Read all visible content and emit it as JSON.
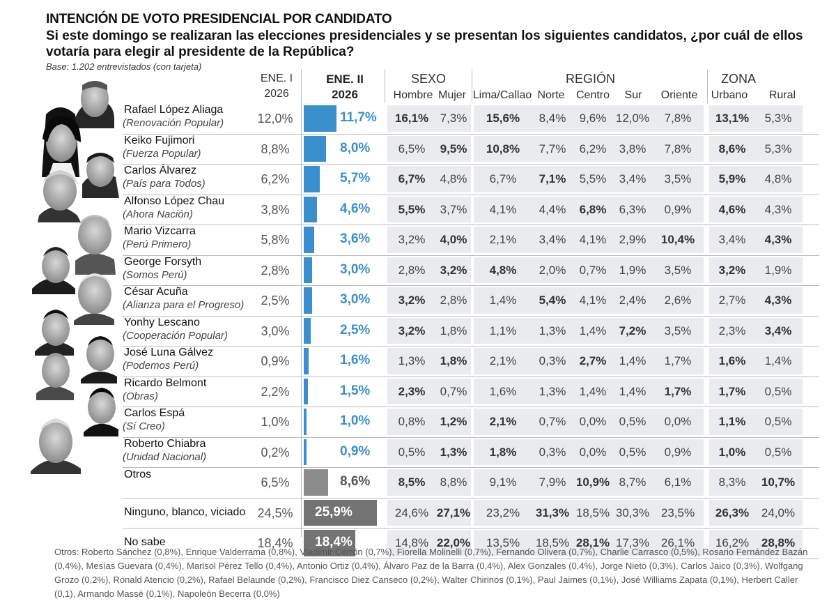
{
  "title": "INTENCIÓN DE VOTO PRESIDENCIAL POR CANDIDATO",
  "subtitle": "Si este domingo se realizaran las elecciones presidenciales y se presentan los siguientes candidatos, ¿por cuál de ellos votaría para elegir al presidente de la República?",
  "base": "Base: 1.202 entrevistados (con tarjeta)",
  "headers": {
    "ene1_line1": "ENE. I",
    "ene1_line2": "2026",
    "ene2_line1": "ENE. II",
    "ene2_line2": "2026",
    "sexo": "SEXO",
    "region": "REGIÓN",
    "zona": "ZONA",
    "hombre": "Hombre",
    "mujer": "Mujer",
    "lima": "Lima/Callao",
    "norte": "Norte",
    "centro": "Centro",
    "sur": "Sur",
    "oriente": "Oriente",
    "urbano": "Urbano",
    "rural": "Rural"
  },
  "colors": {
    "candidate_bar": "#3a8fcf",
    "otros_bar": "#8c8c8c",
    "ninguno_bar": "#737373",
    "cell_bg": "#e9ebee"
  },
  "chart_data": {
    "type": "table",
    "columns": [
      "ENE. I 2026",
      "ENE. II 2026",
      "Hombre",
      "Mujer",
      "Lima/Callao",
      "Norte",
      "Centro",
      "Sur",
      "Oriente",
      "Urbano",
      "Rural"
    ],
    "rows": [
      {
        "name": "Rafael López Aliaga",
        "party": "(Renovación Popular)",
        "ene1": "12,0%",
        "ene2": "11,7%",
        "ene2_value": 11.7,
        "kind": "candidate",
        "cells": [
          "16,1%",
          "7,3%",
          "15,6%",
          "8,4%",
          "9,6%",
          "12,0%",
          "7,8%",
          "13,1%",
          "5,3%"
        ],
        "bold": [
          0,
          2,
          7
        ]
      },
      {
        "name": "Keiko Fujimori",
        "party": "(Fuerza Popular)",
        "ene1": "8,8%",
        "ene2": "8,0%",
        "ene2_value": 8.0,
        "kind": "candidate",
        "cells": [
          "6,5%",
          "9,5%",
          "10,8%",
          "7,7%",
          "6,2%",
          "3,8%",
          "7,8%",
          "8,6%",
          "5,3%"
        ],
        "bold": [
          1,
          2,
          7
        ]
      },
      {
        "name": "Carlos Álvarez",
        "party": "(País para Todos)",
        "ene1": "6,2%",
        "ene2": "5,7%",
        "ene2_value": 5.7,
        "kind": "candidate",
        "cells": [
          "6,7%",
          "4,8%",
          "6,7%",
          "7,1%",
          "5,5%",
          "3,4%",
          "3,5%",
          "5,9%",
          "4,8%"
        ],
        "bold": [
          0,
          3,
          7
        ]
      },
      {
        "name": "Alfonso López Chau",
        "party": "(Ahora Nación)",
        "ene1": "3,8%",
        "ene2": "4,6%",
        "ene2_value": 4.6,
        "kind": "candidate",
        "cells": [
          "5,5%",
          "3,7%",
          "4,1%",
          "4,4%",
          "6,8%",
          "6,3%",
          "0,9%",
          "4,6%",
          "4,3%"
        ],
        "bold": [
          0,
          4,
          7
        ]
      },
      {
        "name": "Mario Vizcarra",
        "party": "(Perú Primero)",
        "ene1": "5,8%",
        "ene2": "3,6%",
        "ene2_value": 3.6,
        "kind": "candidate",
        "cells": [
          "3,2%",
          "4,0%",
          "2,1%",
          "3,4%",
          "4,1%",
          "2,9%",
          "10,4%",
          "3,4%",
          "4,3%"
        ],
        "bold": [
          1,
          6,
          8
        ]
      },
      {
        "name": "George Forsyth",
        "party": "(Somos Perú)",
        "ene1": "2,8%",
        "ene2": "3,0%",
        "ene2_value": 3.0,
        "kind": "candidate",
        "cells": [
          "2,8%",
          "3,2%",
          "4,8%",
          "2,0%",
          "0,7%",
          "1,9%",
          "3,5%",
          "3,2%",
          "1,9%"
        ],
        "bold": [
          1,
          2,
          7
        ]
      },
      {
        "name": "César Acuña",
        "party": "(Alianza para el Progreso)",
        "ene1": "2,5%",
        "ene2": "3,0%",
        "ene2_value": 3.0,
        "kind": "candidate",
        "cells": [
          "3,2%",
          "2,8%",
          "1,4%",
          "5,4%",
          "4,1%",
          "2,4%",
          "2,6%",
          "2,7%",
          "4,3%"
        ],
        "bold": [
          0,
          3,
          8
        ]
      },
      {
        "name": "Yonhy Lescano",
        "party": "(Cooperación Popular)",
        "ene1": "3,0%",
        "ene2": "2,5%",
        "ene2_value": 2.5,
        "kind": "candidate",
        "cells": [
          "3,2%",
          "1,8%",
          "1,1%",
          "1,3%",
          "1,4%",
          "7,2%",
          "3,5%",
          "2,3%",
          "3,4%"
        ],
        "bold": [
          0,
          5,
          8
        ]
      },
      {
        "name": "José Luna Gálvez",
        "party": "(Podemos Perú)",
        "ene1": "0,9%",
        "ene2": "1,6%",
        "ene2_value": 1.6,
        "kind": "candidate",
        "cells": [
          "1,3%",
          "1,8%",
          "2,1%",
          "0,3%",
          "2,7%",
          "1,4%",
          "1,7%",
          "1,6%",
          "1,4%"
        ],
        "bold": [
          1,
          4,
          7
        ]
      },
      {
        "name": "Ricardo Belmont",
        "party": "(Obras)",
        "ene1": "2,2%",
        "ene2": "1,5%",
        "ene2_value": 1.5,
        "kind": "candidate",
        "cells": [
          "2,3%",
          "0,7%",
          "1,6%",
          "1,3%",
          "1,4%",
          "1,4%",
          "1,7%",
          "1,7%",
          "0,5%"
        ],
        "bold": [
          0,
          6,
          7
        ]
      },
      {
        "name": "Carlos Espá",
        "party": "(Sí Creo)",
        "ene1": "1,0%",
        "ene2": "1,0%",
        "ene2_value": 1.0,
        "kind": "candidate",
        "cells": [
          "0,8%",
          "1,2%",
          "2,1%",
          "0,7%",
          "0,0%",
          "0,5%",
          "0,0%",
          "1,1%",
          "0,5%"
        ],
        "bold": [
          1,
          2,
          7
        ]
      },
      {
        "name": "Roberto Chiabra",
        "party": "(Unidad Nacional)",
        "ene1": "0,2%",
        "ene2": "0,9%",
        "ene2_value": 0.9,
        "kind": "candidate",
        "cells": [
          "0,5%",
          "1,3%",
          "1,8%",
          "0,3%",
          "0,0%",
          "0,5%",
          "0,9%",
          "1,0%",
          "0,5%"
        ],
        "bold": [
          1,
          2,
          7
        ]
      },
      {
        "name": "Otros",
        "party": "",
        "ene1": "6,5%",
        "ene2": "8,6%",
        "ene2_value": 8.6,
        "kind": "otros",
        "cells": [
          "8,5%",
          "8,8%",
          "9,1%",
          "7,9%",
          "10,9%",
          "8,7%",
          "6,1%",
          "8,3%",
          "10,7%"
        ],
        "bold": [
          0,
          4,
          8
        ]
      },
      {
        "name": "Ninguno, blanco, viciado",
        "party": "",
        "ene1": "24,5%",
        "ene2": "25,9%",
        "ene2_value": 25.9,
        "kind": "ninguno",
        "cells": [
          "24,6%",
          "27,1%",
          "23,2%",
          "31,3%",
          "18,5%",
          "30,3%",
          "23,5%",
          "26,3%",
          "24,0%"
        ],
        "bold": [
          1,
          3,
          7
        ]
      },
      {
        "name": "No sabe",
        "party": "",
        "ene1": "18,4%",
        "ene2": "18,4%",
        "ene2_value": 18.4,
        "kind": "nosabe",
        "cells": [
          "14,8%",
          "22,0%",
          "13,5%",
          "18,5%",
          "28,1%",
          "17,3%",
          "26,1%",
          "16,2%",
          "28,8%"
        ],
        "bold": [
          1,
          4,
          8
        ]
      }
    ]
  },
  "footnote": "Otros: Roberto Sánchez (0,8%), Enrique Valderrama (0,8%), Vladimir Cerrón (0,7%), Fiorella Molinelli (0,7%), Fernando Olivera (0,7%), Charlie Carrasco (0,5%), Rosario Fernández Bazán (0,4%), Mesías Guevara (0,4%), Marisol Pérez Tello (0,4%), Antonio Ortiz (0,4%), Álvaro Paz de la Barra (0,4%), Alex Gonzales (0,4%), Jorge Nieto (0,3%), Carlos Jaico (0,3%), Wolfgang Grozo (0,2%), Ronald Atencio (0,2%), Rafael Belaunde (0,2%), Francisco Diez Canseco (0,2%), Walter Chirinos (0,1%), Paul Jaimes (0,1%), José Williams Zapata (0,1%), Herbert Caller (0,1), Armando Massé (0,1%), Napoleón Becerra (0,0%)"
}
